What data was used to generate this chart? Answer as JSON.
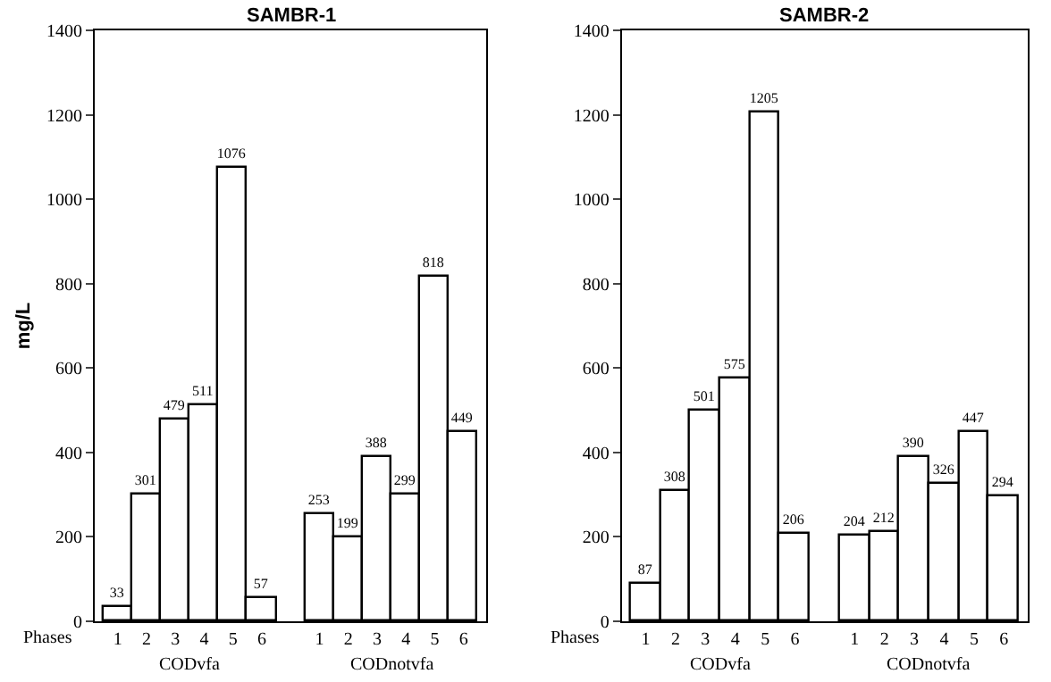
{
  "chart_data": [
    {
      "type": "bar",
      "title": "SAMBR-1",
      "ylabel": "mg/L",
      "categories": [
        "1",
        "2",
        "3",
        "4",
        "5",
        "6",
        null,
        "1",
        "2",
        "3",
        "4",
        "5",
        "6"
      ],
      "values": [
        33,
        301,
        479,
        511,
        1076,
        57,
        null,
        253,
        199,
        388,
        299,
        818,
        449
      ],
      "color": "#ffffff",
      "ylim": [
        0,
        1400
      ],
      "yticks": [
        0,
        200,
        400,
        600,
        800,
        1000,
        1200,
        1400
      ],
      "data_labels": true,
      "annotations": [
        "Phases",
        "CODvfa",
        "CODnotvfa"
      ]
    },
    {
      "type": "bar",
      "title": "SAMBR-2",
      "categories": [
        "1",
        "2",
        "3",
        "4",
        "5",
        "6",
        null,
        "1",
        "2",
        "3",
        "4",
        "5",
        "6"
      ],
      "values": [
        87,
        308,
        501,
        575,
        1205,
        206,
        null,
        204,
        212,
        390,
        326,
        447,
        294
      ],
      "color": "#ffffff",
      "ylim": [
        0,
        1400
      ],
      "yticks": [
        0,
        200,
        400,
        600,
        800,
        1000,
        1200,
        1400
      ],
      "data_labels": true,
      "annotations": [
        "Phases",
        "CODvfa",
        "CODnotvfa"
      ]
    }
  ]
}
